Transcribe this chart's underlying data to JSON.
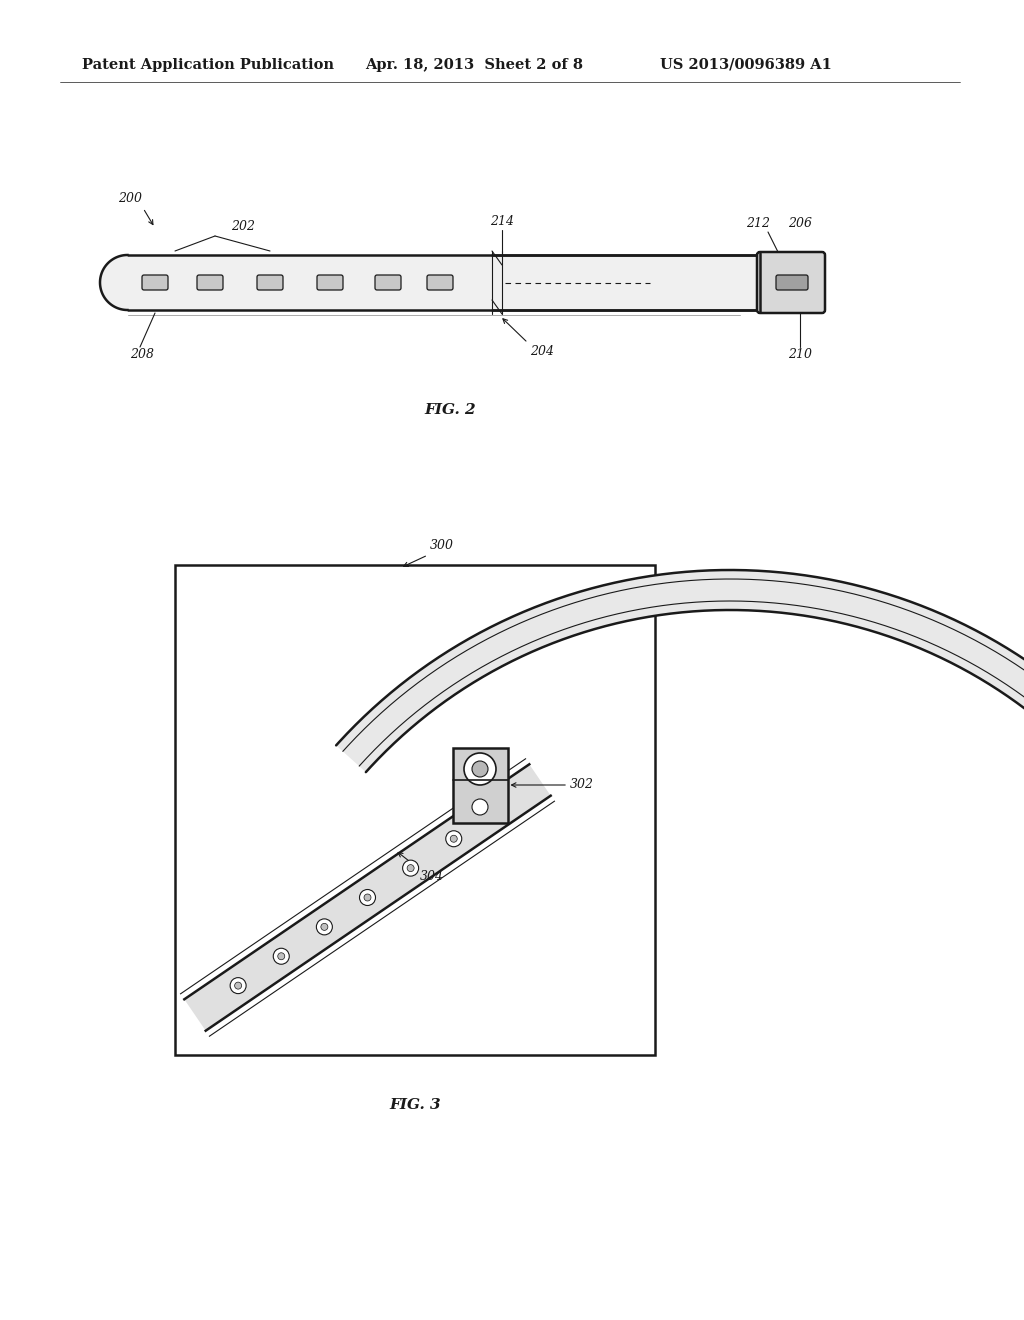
{
  "bg_color": "#ffffff",
  "header_left": "Patent Application Publication",
  "header_mid": "Apr. 18, 2013  Sheet 2 of 8",
  "header_right": "US 2013/0096389 A1",
  "header_fontsize": 10.5,
  "fig2_label": "FIG. 2",
  "fig3_label": "FIG. 3",
  "label_200": "200",
  "label_202": "202",
  "label_204": "204",
  "label_206": "206",
  "label_208": "208",
  "label_210": "210",
  "label_212": "212",
  "label_214": "214",
  "label_300": "300",
  "label_302": "302",
  "label_304": "304",
  "line_color": "#1a1a1a",
  "annotation_fontsize": 9,
  "fig_label_fontsize": 11
}
